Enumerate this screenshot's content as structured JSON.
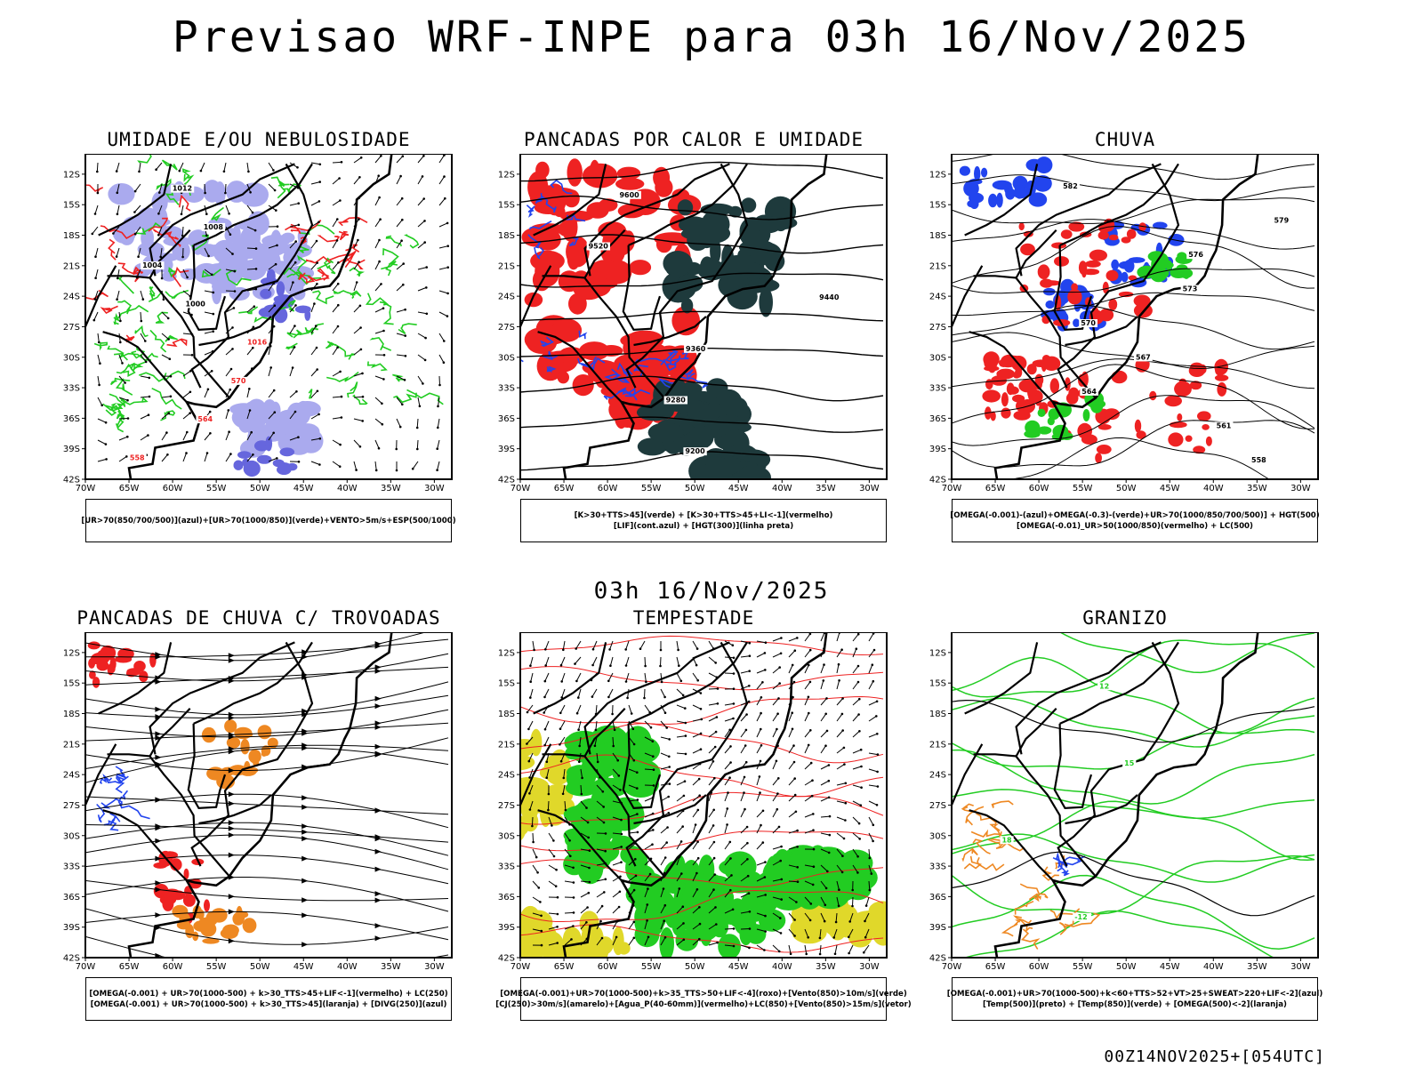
{
  "title": "Previsao WRF-INPE  para 03h 16/Nov/2025",
  "subtitle_time": "03h 16/Nov/2025",
  "footer": "00Z14NOV2025+[054UTC]",
  "axes": {
    "lat_labels": [
      "12S",
      "15S",
      "18S",
      "21S",
      "24S",
      "27S",
      "30S",
      "33S",
      "36S",
      "39S",
      "42S"
    ],
    "lon_labels": [
      "70W",
      "65W",
      "60W",
      "55W",
      "50W",
      "45W",
      "40W",
      "35W",
      "30W"
    ]
  },
  "colors": {
    "green": "#22cc22",
    "red": "#ee2222",
    "blue": "#2244ee",
    "lavender": "#aaaaee",
    "darkteal": "#1e3a3c",
    "orange": "#ee8822",
    "yellow": "#e0d82a"
  },
  "panels": [
    {
      "title": "UMIDADE E/OU NEBULOSIDADE",
      "legend": [
        "[UR>70(850/700/500)](azul)+[UR>70(1000/850)](verde)+VENTO>5m/s+ESP(500/1000)"
      ],
      "contour_labels": [
        "1012",
        "1008",
        "1004",
        "1000",
        "1016",
        "570",
        "564",
        "558"
      ]
    },
    {
      "title": "PANCADAS POR CALOR E UMIDADE",
      "legend": [
        "[K>30+TTS>45](verde) + [K>30+TTS>45+LI<-1](vermelho)",
        "[LIF](cont.azul) + [HGT(300)](linha preta)"
      ],
      "contour_labels": [
        "9600",
        "9520",
        "9440",
        "9360",
        "9280",
        "9200"
      ]
    },
    {
      "title": "CHUVA",
      "legend": [
        "[OMEGA(-0.001)-(azul)+OMEGA(-0.3)-(verde)+UR>70(1000/850/700/500)] + HGT(500)",
        "[OMEGA(-0.01)_UR>50(1000/850)(vermelho) + LC(500)"
      ],
      "contour_labels": [
        "582",
        "579",
        "576",
        "573",
        "570",
        "567",
        "564",
        "561",
        "558"
      ]
    },
    {
      "title": "PANCADAS DE CHUVA C/ TROVOADAS",
      "legend": [
        "[OMEGA(-0.001) + UR>70(1000-500) + k>30_TTS>45+LIF<-1](vermelho) + LC(250)",
        "[OMEGA(-0.001) + UR>70(1000-500) + k>30_TTS>45](laranja) + [DIVG(250)](azul)"
      ],
      "contour_labels": []
    },
    {
      "title": "TEMPESTADE",
      "legend": [
        "[OMEGA(-0.001)+UR>70(1000-500)+k>35_TTS>50+LIF<-4](roxo)+[Vento(850)>10m/s](verde)",
        "[CJ(250)>30m/s](amarelo)+[Agua_P(40-60mm)](vermelho)+LC(850)+[Vento(850)>15m/s](vetor)"
      ],
      "contour_labels": []
    },
    {
      "title": "GRANIZO",
      "legend": [
        "[OMEGA(-0.001)+UR>70(1000-500)+k<60+TTS>52+VT>25+SWEAT>220+LIF<-2](azul)",
        "[Temp(500)](preto) + [Temp(850)](verde) + [OMEGA(500)<-2](laranja)"
      ],
      "contour_labels": [
        "12",
        "15",
        "18",
        "-12"
      ]
    }
  ]
}
